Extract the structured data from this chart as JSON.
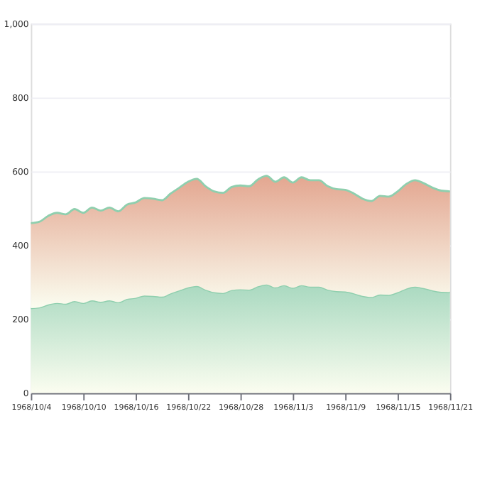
{
  "chart_data": {
    "type": "area",
    "stacked": true,
    "x": [
      "1968-10-04",
      "1968-10-05",
      "1968-10-06",
      "1968-10-07",
      "1968-10-08",
      "1968-10-09",
      "1968-10-10",
      "1968-10-11",
      "1968-10-12",
      "1968-10-13",
      "1968-10-14",
      "1968-10-15",
      "1968-10-16",
      "1968-10-17",
      "1968-10-18",
      "1968-10-19",
      "1968-10-20",
      "1968-10-21",
      "1968-10-22",
      "1968-10-23",
      "1968-10-24",
      "1968-10-25",
      "1968-10-26",
      "1968-10-27",
      "1968-10-28",
      "1968-10-29",
      "1968-10-30",
      "1968-10-31",
      "1968-11-01",
      "1968-11-02",
      "1968-11-03",
      "1968-11-04",
      "1968-11-05",
      "1968-11-06",
      "1968-11-07",
      "1968-11-08",
      "1968-11-09",
      "1968-11-10",
      "1968-11-11",
      "1968-11-12",
      "1968-11-13",
      "1968-11-14",
      "1968-11-15",
      "1968-11-16",
      "1968-11-17",
      "1968-11-18",
      "1968-11-19",
      "1968-11-20",
      "1968-11-21"
    ],
    "series": [
      {
        "color": "#a9d9c0",
        "values": [
          230,
          232,
          240,
          244,
          242,
          249,
          244,
          251,
          247,
          251,
          246,
          255,
          258,
          264,
          263,
          261,
          270,
          278,
          286,
          290,
          280,
          273,
          271,
          279,
          281,
          280,
          289,
          294,
          286,
          292,
          285,
          292,
          288,
          288,
          280,
          276,
          275,
          270,
          263,
          260,
          267,
          266,
          273,
          283,
          288,
          284,
          278,
          274,
          273
        ]
      },
      {
        "color": "#e3a690",
        "values": [
          230,
          232,
          240,
          244,
          242,
          249,
          244,
          251,
          247,
          251,
          246,
          255,
          258,
          264,
          263,
          261,
          270,
          278,
          286,
          290,
          280,
          273,
          271,
          279,
          281,
          280,
          289,
          294,
          286,
          292,
          285,
          292,
          288,
          288,
          280,
          276,
          275,
          270,
          263,
          260,
          267,
          266,
          273,
          283,
          288,
          284,
          278,
          274,
          273
        ]
      }
    ],
    "xlim": [
      "1968-10-04",
      "1968-11-21"
    ],
    "xticks": [
      {
        "value": "1968-10-04",
        "label": "1968/10/4"
      },
      {
        "value": "1968-10-10",
        "label": "1968/10/10"
      },
      {
        "value": "1968-10-16",
        "label": "1968/10/16"
      },
      {
        "value": "1968-10-22",
        "label": "1968/10/22"
      },
      {
        "value": "1968-10-28",
        "label": "1968/10/28"
      },
      {
        "value": "1968-11-03",
        "label": "1968/11/3"
      },
      {
        "value": "1968-11-09",
        "label": "1968/11/9"
      },
      {
        "value": "1968-11-15",
        "label": "1968/11/15"
      },
      {
        "value": "1968-11-21",
        "label": "1968/11/21"
      }
    ],
    "ylim": [
      0,
      1000
    ],
    "yticks": [
      0,
      200,
      400,
      600,
      800,
      {
        "value": 1000,
        "label": "1,000"
      }
    ],
    "grid": "y"
  }
}
